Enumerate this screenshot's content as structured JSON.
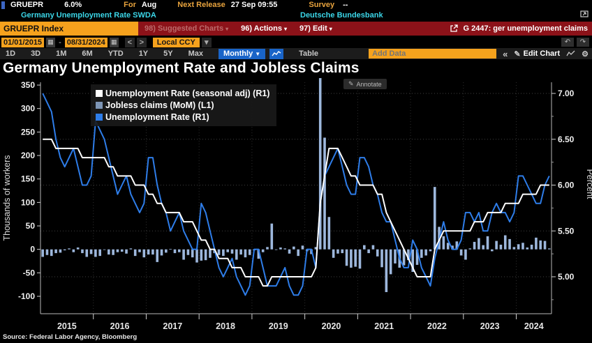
{
  "top_bar": {
    "ticker": "GRUEPR",
    "value": "6.0%",
    "for_label": "For",
    "for_value": "Aug",
    "next_release_label": "Next Release",
    "next_release_value": "27 Sep 09:55",
    "survey_label": "Survey",
    "survey_value": "--"
  },
  "security_bar": {
    "name": "Germany Unemployment Rate SWDA",
    "source": "Deutsche Bundesbank"
  },
  "red_toolbar": {
    "security_input": "GRUEPR Index",
    "suggested_charts": "98) Suggested Charts",
    "actions": "96) Actions",
    "edit": "97) Edit",
    "chart_tag": "G 2447: ger unemployment claims"
  },
  "range_bar": {
    "date_from": "01/01/2015",
    "range_separator": "-",
    "date_to": "08/31/2024",
    "currency": "Local CCY"
  },
  "period_bar": {
    "periods": [
      "1D",
      "3D",
      "1M",
      "6M",
      "YTD",
      "1Y",
      "5Y",
      "Max"
    ],
    "frequency": "Monthly",
    "table_label": "Table",
    "add_data_placeholder": "Add Data",
    "edit_chart_label": "Edit Chart"
  },
  "icons": {
    "caret_down": "▾",
    "freq_caret": "▼",
    "prev": "<",
    "next": ">",
    "calendar": "▦",
    "undo": "↶",
    "redo": "↷",
    "collapse": "«",
    "pencil": "✎",
    "gear": "⚙"
  },
  "chart": {
    "title": "Germany Unemployment Rate and Jobless Claims",
    "annotate_label": "Annotate",
    "source": "Source: Federal Labor Agency, Bloomberg"
  },
  "colors": {
    "amber": "#f6a21d",
    "red_bar": "#8c1219",
    "cyan": "#3bd6e8",
    "accent_blue": "#1964c8"
  },
  "chart_data": {
    "type": "combo",
    "frequency": "monthly",
    "x_start": "2015-01",
    "x_end": "2024-08",
    "n_points": 116,
    "x_tick_labels": [
      "2015",
      "2016",
      "2017",
      "2018",
      "2019",
      "2020",
      "2021",
      "2022",
      "2023",
      "2024"
    ],
    "grid": {
      "horizontal_at_percent": [
        7.0,
        6.5,
        6.0,
        5.5,
        5.0
      ],
      "vertical_year_boundaries": true
    },
    "left_axis": {
      "label": "Thousands of workers",
      "ticks": [
        350,
        300,
        250,
        200,
        150,
        100,
        50,
        0,
        -50,
        -100
      ],
      "min": -130,
      "max": 356
    },
    "right_axis": {
      "label": "Percent",
      "ticks": [
        7.0,
        6.5,
        6.0,
        5.5,
        5.0
      ],
      "minor_ticks": [
        6.75,
        6.25,
        5.75,
        5.25,
        4.75
      ],
      "min": 4.6,
      "max": 7.05
    },
    "series": [
      {
        "name": "Unemployment Rate (seasonal adj) (R1)",
        "type": "line",
        "axis": "right",
        "color": "#ffffff",
        "legend_color": "#ffffff",
        "values": [
          6.5,
          6.5,
          6.5,
          6.4,
          6.4,
          6.4,
          6.4,
          6.4,
          6.4,
          6.3,
          6.3,
          6.3,
          6.3,
          6.3,
          6.3,
          6.2,
          6.2,
          6.1,
          6.1,
          6.1,
          6.1,
          6.0,
          6.0,
          6.0,
          5.9,
          5.9,
          5.8,
          5.8,
          5.7,
          5.7,
          5.7,
          5.7,
          5.6,
          5.6,
          5.6,
          5.5,
          5.4,
          5.4,
          5.3,
          5.3,
          5.2,
          5.2,
          5.2,
          5.1,
          5.1,
          5.1,
          5.0,
          5.0,
          5.0,
          5.0,
          4.9,
          4.9,
          5.0,
          5.0,
          5.0,
          5.0,
          5.0,
          5.0,
          5.0,
          5.0,
          5.0,
          5.0,
          5.1,
          5.8,
          6.1,
          6.4,
          6.4,
          6.4,
          6.3,
          6.2,
          6.1,
          6.1,
          6.0,
          6.0,
          6.0,
          6.0,
          5.9,
          5.9,
          5.7,
          5.6,
          5.5,
          5.4,
          5.3,
          5.2,
          5.1,
          5.0,
          5.0,
          5.0,
          5.0,
          5.3,
          5.4,
          5.5,
          5.5,
          5.5,
          5.5,
          5.5,
          5.5,
          5.5,
          5.6,
          5.6,
          5.6,
          5.7,
          5.7,
          5.7,
          5.7,
          5.8,
          5.8,
          5.8,
          5.8,
          5.9,
          5.9,
          5.9,
          5.9,
          6.0,
          6.0,
          6.0
        ]
      },
      {
        "name": "Jobless claims (MoM) (L1)",
        "type": "bar",
        "axis": "left",
        "color": "#9db7dc",
        "legend_color": "#7d95b5",
        "values": [
          -16,
          -12,
          -14,
          -8,
          -7,
          -2,
          2,
          -6,
          4,
          -8,
          -16,
          -10,
          -16,
          -14,
          0,
          -11,
          -12,
          -6,
          -5,
          -9,
          2,
          -14,
          -6,
          -17,
          -11,
          -11,
          -27,
          -13,
          -7,
          1,
          -8,
          -6,
          -22,
          -12,
          -17,
          -28,
          -24,
          -23,
          -18,
          -8,
          -12,
          -14,
          -6,
          -9,
          -22,
          -11,
          -17,
          -12,
          -2,
          -20,
          -6,
          5,
          55,
          -1,
          4,
          2,
          -9,
          6,
          -14,
          8,
          -4,
          -10,
          5,
          373,
          238,
          69,
          -18,
          -9,
          -8,
          -35,
          -39,
          -37,
          -41,
          9,
          -8,
          9,
          -15,
          -38,
          -91,
          -53,
          -30,
          -39,
          -34,
          -23,
          -48,
          -33,
          -18,
          -13,
          -4,
          133,
          48,
          28,
          14,
          8,
          17,
          -13,
          -22,
          2,
          16,
          24,
          9,
          28,
          -4,
          18,
          10,
          30,
          22,
          5,
          11,
          14,
          4,
          10,
          25,
          19,
          18,
          2
        ]
      },
      {
        "name": "Unemployment Rate (R1)",
        "type": "line",
        "axis": "right",
        "color": "#2e7de9",
        "legend_color": "#2e7de9",
        "values": [
          7.0,
          6.9,
          6.8,
          6.5,
          6.3,
          6.2,
          6.3,
          6.4,
          6.2,
          6.0,
          6.0,
          6.1,
          6.7,
          6.6,
          6.5,
          6.3,
          6.1,
          5.9,
          6.0,
          6.1,
          5.9,
          5.8,
          5.7,
          5.8,
          6.3,
          6.3,
          6.0,
          5.8,
          5.7,
          5.5,
          5.6,
          5.7,
          5.5,
          5.4,
          5.3,
          5.3,
          5.8,
          5.7,
          5.5,
          5.3,
          5.1,
          5.0,
          5.1,
          5.2,
          5.0,
          4.9,
          4.8,
          4.9,
          5.3,
          5.3,
          5.1,
          4.9,
          4.9,
          4.9,
          5.0,
          5.1,
          4.9,
          4.8,
          4.8,
          4.9,
          5.3,
          5.3,
          5.1,
          5.8,
          6.1,
          6.2,
          6.3,
          6.4,
          6.2,
          6.0,
          5.9,
          5.9,
          6.3,
          6.3,
          6.2,
          6.0,
          5.9,
          5.7,
          5.6,
          5.6,
          5.4,
          5.2,
          5.1,
          5.1,
          5.4,
          5.3,
          5.1,
          5.0,
          4.9,
          5.2,
          5.4,
          5.6,
          5.4,
          5.3,
          5.3,
          5.4,
          5.7,
          5.7,
          5.6,
          5.7,
          5.5,
          5.5,
          5.7,
          5.8,
          5.7,
          5.7,
          5.6,
          5.7,
          6.1,
          6.1,
          6.0,
          5.9,
          5.8,
          5.8,
          6.0,
          6.1
        ]
      }
    ]
  }
}
